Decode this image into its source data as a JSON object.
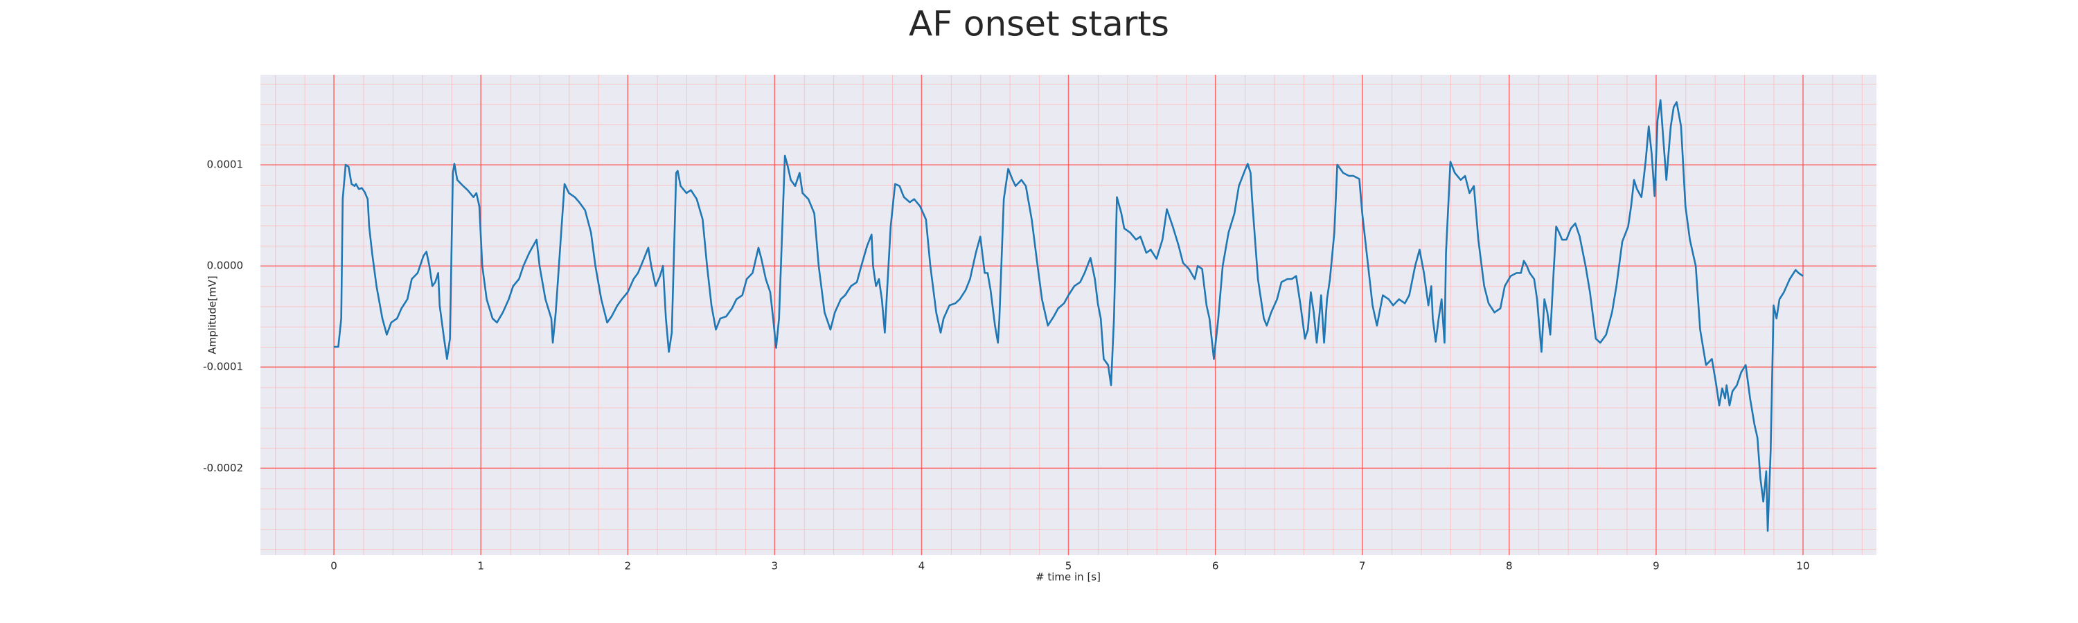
{
  "chart_data": {
    "type": "line",
    "title": "AF onset starts",
    "xlabel": "# time in [s]",
    "ylabel": "Amplitude[mV]",
    "color": "#1f77b4",
    "grid": true,
    "minor_grid": true,
    "xlim": [
      -0.5,
      10.5
    ],
    "ylim": [
      -0.000286,
      0.000189
    ],
    "xticks": [
      0,
      1,
      2,
      3,
      4,
      5,
      6,
      7,
      8,
      9,
      10
    ],
    "yticks": [
      -0.0002,
      -0.0001,
      {
        "value": 0,
        "label": "0.0000"
      },
      0.0001
    ],
    "x": [
      0,
      0.03,
      0.05,
      0.06,
      0.08,
      0.1,
      0.12,
      0.14,
      0.15,
      0.17,
      0.19,
      0.21,
      0.23,
      0.24,
      0.26,
      0.29,
      0.33,
      0.36,
      0.39,
      0.43,
      0.46,
      0.5,
      0.53,
      0.57,
      0.61,
      0.63,
      0.65,
      0.67,
      0.69,
      0.71,
      0.72,
      0.75,
      0.77,
      0.79,
      0.81,
      0.82,
      0.84,
      0.88,
      0.91,
      0.95,
      0.97,
      0.99,
      1.01,
      1.04,
      1.08,
      1.11,
      1.15,
      1.19,
      1.22,
      1.26,
      1.29,
      1.33,
      1.38,
      1.4,
      1.44,
      1.48,
      1.49,
      1.51,
      1.55,
      1.57,
      1.6,
      1.64,
      1.67,
      1.71,
      1.75,
      1.78,
      1.82,
      1.86,
      1.89,
      1.93,
      1.96,
      2.0,
      2.04,
      2.07,
      2.11,
      2.14,
      2.16,
      2.19,
      2.22,
      2.24,
      2.26,
      2.28,
      2.3,
      2.33,
      2.34,
      2.36,
      2.4,
      2.43,
      2.47,
      2.51,
      2.54,
      2.57,
      2.6,
      2.63,
      2.67,
      2.71,
      2.74,
      2.78,
      2.81,
      2.85,
      2.89,
      2.91,
      2.94,
      2.97,
      2.99,
      3.01,
      3.03,
      3.07,
      3.09,
      3.11,
      3.14,
      3.17,
      3.19,
      3.23,
      3.27,
      3.3,
      3.34,
      3.38,
      3.41,
      3.45,
      3.48,
      3.52,
      3.56,
      3.59,
      3.63,
      3.66,
      3.67,
      3.69,
      3.71,
      3.73,
      3.75,
      3.76,
      3.79,
      3.82,
      3.85,
      3.88,
      3.92,
      3.95,
      3.99,
      4.03,
      4.06,
      4.1,
      4.13,
      4.15,
      4.19,
      4.23,
      4.26,
      4.3,
      4.33,
      4.37,
      4.4,
      4.43,
      4.45,
      4.47,
      4.5,
      4.52,
      4.53,
      4.56,
      4.59,
      4.62,
      4.64,
      4.68,
      4.71,
      4.75,
      4.79,
      4.82,
      4.86,
      4.9,
      4.93,
      4.97,
      5.0,
      5.04,
      5.08,
      5.11,
      5.15,
      5.18,
      5.2,
      5.22,
      5.24,
      5.27,
      5.29,
      5.31,
      5.33,
      5.36,
      5.38,
      5.42,
      5.46,
      5.49,
      5.53,
      5.56,
      5.6,
      5.64,
      5.67,
      5.71,
      5.75,
      5.78,
      5.82,
      5.86,
      5.88,
      5.91,
      5.94,
      5.96,
      5.99,
      6.02,
      6.05,
      6.09,
      6.13,
      6.16,
      6.2,
      6.22,
      6.24,
      6.25,
      6.29,
      6.33,
      6.35,
      6.38,
      6.42,
      6.45,
      6.49,
      6.52,
      6.55,
      6.58,
      6.61,
      6.63,
      6.65,
      6.67,
      6.69,
      6.71,
      6.72,
      6.74,
      6.76,
      6.78,
      6.81,
      6.83,
      6.87,
      6.91,
      6.94,
      6.98,
      7.0,
      7.03,
      7.07,
      7.1,
      7.14,
      7.18,
      7.21,
      7.25,
      7.29,
      7.32,
      7.36,
      7.39,
      7.42,
      7.45,
      7.47,
      7.48,
      7.5,
      7.52,
      7.54,
      7.56,
      7.57,
      7.6,
      7.63,
      7.67,
      7.7,
      7.73,
      7.76,
      7.79,
      7.83,
      7.86,
      7.9,
      7.94,
      7.97,
      8.01,
      8.05,
      8.08,
      8.1,
      8.12,
      8.14,
      8.17,
      8.19,
      8.22,
      8.24,
      8.26,
      8.28,
      8.3,
      8.32,
      8.34,
      8.36,
      8.39,
      8.42,
      8.45,
      8.48,
      8.52,
      8.55,
      8.59,
      8.62,
      8.66,
      8.7,
      8.73,
      8.77,
      8.81,
      8.83,
      8.85,
      8.87,
      8.9,
      8.91,
      8.93,
      8.95,
      8.97,
      8.99,
      9.01,
      9.03,
      9.05,
      9.07,
      9.1,
      9.12,
      9.14,
      9.17,
      9.2,
      9.23,
      9.27,
      9.3,
      9.34,
      9.38,
      9.41,
      9.43,
      9.45,
      9.47,
      9.48,
      9.5,
      9.52,
      9.55,
      9.58,
      9.61,
      9.64,
      9.67,
      9.69,
      9.71,
      9.73,
      9.75,
      9.76,
      9.78,
      9.8,
      9.82,
      9.84,
      9.87,
      9.91,
      9.95,
      9.97,
      10.0
    ],
    "values": [
      -8e-05,
      -8e-05,
      -5.2e-05,
      6.6e-05,
      0.0001,
      9.8e-05,
      8.1e-05,
      7.9e-05,
      8.1e-05,
      7.6e-05,
      7.7e-05,
      7.3e-05,
      6.6e-05,
      3.9e-05,
      1.3e-05,
      -2e-05,
      -5.2e-05,
      -6.8e-05,
      -5.6e-05,
      -5.2e-05,
      -4.2e-05,
      -3.3e-05,
      -1.3e-05,
      -7e-06,
      1e-05,
      1.4e-05,
      0,
      -2e-05,
      -1.6e-05,
      -7e-06,
      -3.9e-05,
      -7.2e-05,
      -9.2e-05,
      -7.2e-05,
      9.2e-05,
      0.000101,
      8.5e-05,
      7.9e-05,
      7.5e-05,
      6.8e-05,
      7.2e-05,
      5.9e-05,
      0,
      -3.3e-05,
      -5.2e-05,
      -5.6e-05,
      -4.6e-05,
      -3.3e-05,
      -2e-05,
      -1.3e-05,
      0,
      1.3e-05,
      2.6e-05,
      0,
      -3.3e-05,
      -5.2e-05,
      -7.6e-05,
      -4.6e-05,
      3.9e-05,
      8.1e-05,
      7.2e-05,
      6.8e-05,
      6.3e-05,
      5.5e-05,
      3.3e-05,
      0,
      -3.3e-05,
      -5.6e-05,
      -5e-05,
      -3.9e-05,
      -3.3e-05,
      -2.6e-05,
      -1.3e-05,
      -7e-06,
      7e-06,
      1.8e-05,
      0,
      -2e-05,
      -1e-05,
      0,
      -5.2e-05,
      -8.5e-05,
      -6.6e-05,
      9.2e-05,
      9.4e-05,
      7.9e-05,
      7.2e-05,
      7.5e-05,
      6.6e-05,
      4.6e-05,
      0,
      -3.9e-05,
      -6.3e-05,
      -5.2e-05,
      -5e-05,
      -4.2e-05,
      -3.3e-05,
      -2.9e-05,
      -1.3e-05,
      -7e-06,
      1.8e-05,
      7e-06,
      -1.3e-05,
      -2.6e-05,
      -5.2e-05,
      -8.1e-05,
      -5.2e-05,
      0.000109,
      9.8e-05,
      8.5e-05,
      7.9e-05,
      9.2e-05,
      7.2e-05,
      6.6e-05,
      5.2e-05,
      0,
      -4.6e-05,
      -6.3e-05,
      -4.6e-05,
      -3.3e-05,
      -2.9e-05,
      -2e-05,
      -1.6e-05,
      0,
      2e-05,
      3.1e-05,
      0,
      -2e-05,
      -1.3e-05,
      -3.3e-05,
      -6.6e-05,
      -3.9e-05,
      3.9e-05,
      8.1e-05,
      7.9e-05,
      6.8e-05,
      6.3e-05,
      6.6e-05,
      5.9e-05,
      4.6e-05,
      0,
      -4.6e-05,
      -6.6e-05,
      -5.2e-05,
      -3.9e-05,
      -3.7e-05,
      -3.3e-05,
      -2.4e-05,
      -1.3e-05,
      1.3e-05,
      2.9e-05,
      -7e-06,
      -7e-06,
      -2.4e-05,
      -5.9e-05,
      -7.6e-05,
      -5.2e-05,
      6.6e-05,
      9.6e-05,
      8.5e-05,
      7.9e-05,
      8.5e-05,
      7.9e-05,
      4.6e-05,
      0,
      -3.3e-05,
      -5.9e-05,
      -5e-05,
      -4.2e-05,
      -3.7e-05,
      -2.9e-05,
      -2e-05,
      -1.6e-05,
      -7e-06,
      8e-06,
      -1.3e-05,
      -3.7e-05,
      -5.2e-05,
      -9.2e-05,
      -9.8e-05,
      -0.000118,
      -5.2e-05,
      6.8e-05,
      5.2e-05,
      3.7e-05,
      3.3e-05,
      2.6e-05,
      2.9e-05,
      1.3e-05,
      1.6e-05,
      7e-06,
      2.6e-05,
      5.6e-05,
      3.9e-05,
      2e-05,
      3e-06,
      -3e-06,
      -1.3e-05,
      0,
      -3e-06,
      -3.9e-05,
      -5.2e-05,
      -9.2e-05,
      -5.2e-05,
      0,
      3.3e-05,
      5.2e-05,
      7.9e-05,
      9.4e-05,
      0.000101,
      9.2e-05,
      6.6e-05,
      -1.3e-05,
      -5.2e-05,
      -5.9e-05,
      -4.6e-05,
      -3.3e-05,
      -1.6e-05,
      -1.3e-05,
      -1.3e-05,
      -1e-05,
      -3.9e-05,
      -7.2e-05,
      -6.3e-05,
      -2.6e-05,
      -4.6e-05,
      -7.6e-05,
      -4.6e-05,
      -2.9e-05,
      -7.6e-05,
      -3.3e-05,
      -1.3e-05,
      3.3e-05,
      0.0001,
      9.2e-05,
      8.9e-05,
      8.9e-05,
      8.6e-05,
      5.2e-05,
      1.3e-05,
      -3.9e-05,
      -5.9e-05,
      -2.9e-05,
      -3.3e-05,
      -3.9e-05,
      -3.3e-05,
      -3.7e-05,
      -2.9e-05,
      0,
      1.6e-05,
      -7e-06,
      -3.9e-05,
      -2e-05,
      -5.2e-05,
      -7.5e-05,
      -5.2e-05,
      -3.3e-05,
      -7.6e-05,
      1.3e-05,
      0.000103,
      9.2e-05,
      8.5e-05,
      8.9e-05,
      7.2e-05,
      7.9e-05,
      2.6e-05,
      -2e-05,
      -3.7e-05,
      -4.6e-05,
      -4.2e-05,
      -2e-05,
      -1e-05,
      -7e-06,
      -7e-06,
      5e-06,
      0,
      -7e-06,
      -1.3e-05,
      -3.3e-05,
      -8.5e-05,
      -3.3e-05,
      -4.6e-05,
      -6.8e-05,
      -1.3e-05,
      3.9e-05,
      3.3e-05,
      2.6e-05,
      2.6e-05,
      3.7e-05,
      4.2e-05,
      2.9e-05,
      0,
      -2.6e-05,
      -7.2e-05,
      -7.6e-05,
      -6.8e-05,
      -4.6e-05,
      -2e-05,
      2.4e-05,
      3.9e-05,
      5.9e-05,
      8.5e-05,
      7.6e-05,
      6.8e-05,
      7.9e-05,
      0.000105,
      0.000138,
      0.000111,
      6.9e-05,
      0.000144,
      0.000164,
      0.000124,
      8.5e-05,
      0.000138,
      0.000157,
      0.000162,
      0.000138,
      5.9e-05,
      2.6e-05,
      0,
      -6.3e-05,
      -9.8e-05,
      -9.2e-05,
      -0.000118,
      -0.000138,
      -0.000121,
      -0.000131,
      -0.000118,
      -0.000138,
      -0.000124,
      -0.000118,
      -0.000105,
      -9.8e-05,
      -0.000131,
      -0.000157,
      -0.00017,
      -0.00021,
      -0.000233,
      -0.000203,
      -0.000262,
      -0.000183,
      -3.9e-05,
      -5.2e-05,
      -3.3e-05,
      -2.6e-05,
      -1.3e-05,
      -4e-06,
      -7e-06,
      -1e-05
    ]
  }
}
